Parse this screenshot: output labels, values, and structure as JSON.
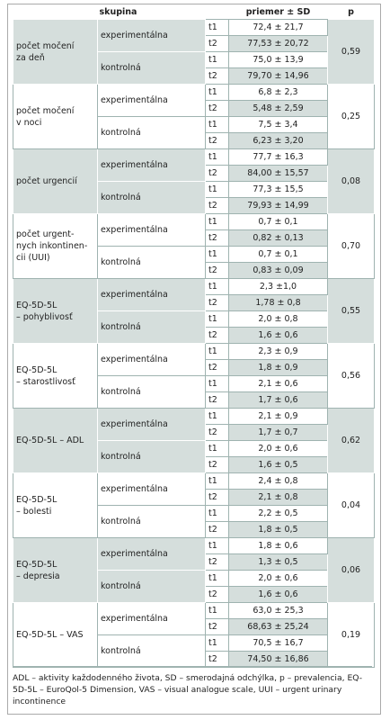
{
  "table": {
    "header": [
      "skupina",
      "priemer ± SD",
      "p"
    ],
    "groups": [
      {
        "label": "počet močení\nza deň",
        "p": "0,59",
        "rows": [
          {
            "group": "experimentálna",
            "values": [
              [
                "t1",
                "72,4 ± 21,7"
              ],
              [
                "t2",
                "77,53 ± 20,72"
              ]
            ]
          },
          {
            "group": "kontrolná",
            "values": [
              [
                "t1",
                "75,0 ± 13,9"
              ],
              [
                "t2",
                "79,70 ± 14,96"
              ]
            ]
          }
        ]
      },
      {
        "label": "počet močení\nv noci",
        "p": "0,25",
        "rows": [
          {
            "group": "experimentálna",
            "values": [
              [
                "t1",
                "6,8 ± 2,3"
              ],
              [
                "t2",
                "5,48 ± 2,59"
              ]
            ]
          },
          {
            "group": "kontrolná",
            "values": [
              [
                "t1",
                "7,5 ± 3,4"
              ],
              [
                "t2",
                "6,23 ± 3,20"
              ]
            ]
          }
        ]
      },
      {
        "label": "počet urgencií",
        "p": "0,08",
        "rows": [
          {
            "group": "experimentálna",
            "values": [
              [
                "t1",
                "77,7 ± 16,3"
              ],
              [
                "t2",
                "84,00 ± 15,57"
              ]
            ]
          },
          {
            "group": "kontrolná",
            "values": [
              [
                "t1",
                "77,3 ± 15,5"
              ],
              [
                "t2",
                "79,93 ± 14,99"
              ]
            ]
          }
        ]
      },
      {
        "label": "počet urgent-\nnych inkontinen-\ncii (UUI)",
        "p": "0,70",
        "rows": [
          {
            "group": "experimentálna",
            "values": [
              [
                "t1",
                "0,7 ± 0,1"
              ],
              [
                "t2",
                "0,82 ± 0,13"
              ]
            ]
          },
          {
            "group": "kontrolná",
            "values": [
              [
                "t1",
                "0,7 ± 0,1"
              ],
              [
                "t2",
                "0,83 ± 0,09"
              ]
            ]
          }
        ]
      },
      {
        "label": "EQ-5D-5L\n– pohyblivosť",
        "p": "0,55",
        "rows": [
          {
            "group": "experimentálna",
            "values": [
              [
                "t1",
                "2,3 ±1,0"
              ],
              [
                "t2",
                "1,78 ± 0,8"
              ]
            ]
          },
          {
            "group": "kontrolná",
            "values": [
              [
                "t1",
                "2,0 ± 0,8"
              ],
              [
                "t2",
                "1,6 ± 0,6"
              ]
            ]
          }
        ]
      },
      {
        "label": "EQ-5D-5L\n– starostlivosť",
        "p": "0,56",
        "rows": [
          {
            "group": "experimentálna",
            "values": [
              [
                "t1",
                "2,3 ± 0,9"
              ],
              [
                "t2",
                "1,8 ± 0,9"
              ]
            ]
          },
          {
            "group": "kontrolná",
            "values": [
              [
                "t1",
                "2,1 ± 0,6"
              ],
              [
                "t2",
                "1,7 ± 0,6"
              ]
            ]
          }
        ]
      },
      {
        "label": "EQ-5D-5L – ADL",
        "p": "0,62",
        "rows": [
          {
            "group": "experimentálna",
            "values": [
              [
                "t1",
                "2,1 ± 0,9"
              ],
              [
                "t2",
                "1,7 ± 0,7"
              ]
            ]
          },
          {
            "group": "kontrolná",
            "values": [
              [
                "t1",
                "2,0 ± 0,6"
              ],
              [
                "t2",
                "1,6 ± 0,5"
              ]
            ]
          }
        ]
      },
      {
        "label": "EQ-5D-5L\n– bolesti",
        "p": "0,04",
        "rows": [
          {
            "group": "experimentálna",
            "values": [
              [
                "t1",
                "2,4 ± 0,8"
              ],
              [
                "t2",
                "2,1 ± 0,8"
              ]
            ]
          },
          {
            "group": "kontrolná",
            "values": [
              [
                "t1",
                "2,2 ± 0,5"
              ],
              [
                "t2",
                "1,8 ± 0,5"
              ]
            ]
          }
        ]
      },
      {
        "label": "EQ-5D-5L\n– depresia",
        "p": "0,06",
        "rows": [
          {
            "group": "experimentálna",
            "values": [
              [
                "t1",
                "1,8 ± 0,6"
              ],
              [
                "t2",
                "1,3 ± 0,5"
              ]
            ]
          },
          {
            "group": "kontrolná",
            "values": [
              [
                "t1",
                "2,0 ± 0,6"
              ],
              [
                "t2",
                "1,6 ± 0,6"
              ]
            ]
          }
        ]
      },
      {
        "label": "EQ-5D-5L – VAS",
        "p": "0,19",
        "rows": [
          {
            "group": "experimentálna",
            "values": [
              [
                "t1",
                "63,0 ± 25,3"
              ],
              [
                "t2",
                "68,63 ± 25,24"
              ]
            ]
          },
          {
            "group": "kontrolná",
            "values": [
              [
                "t1",
                "70,5 ± 16,7"
              ],
              [
                "t2",
                "74,50 ± 16,86"
              ]
            ]
          }
        ]
      }
    ]
  },
  "footnote": "ADL – aktivity každodenného života, SD – smerodajná odchýlka, p – prevalencia, EQ-5D-5L – EuroQol-5 Dimension, VAS – visual analogue scale, UUI – urgent urinary incontinence"
}
